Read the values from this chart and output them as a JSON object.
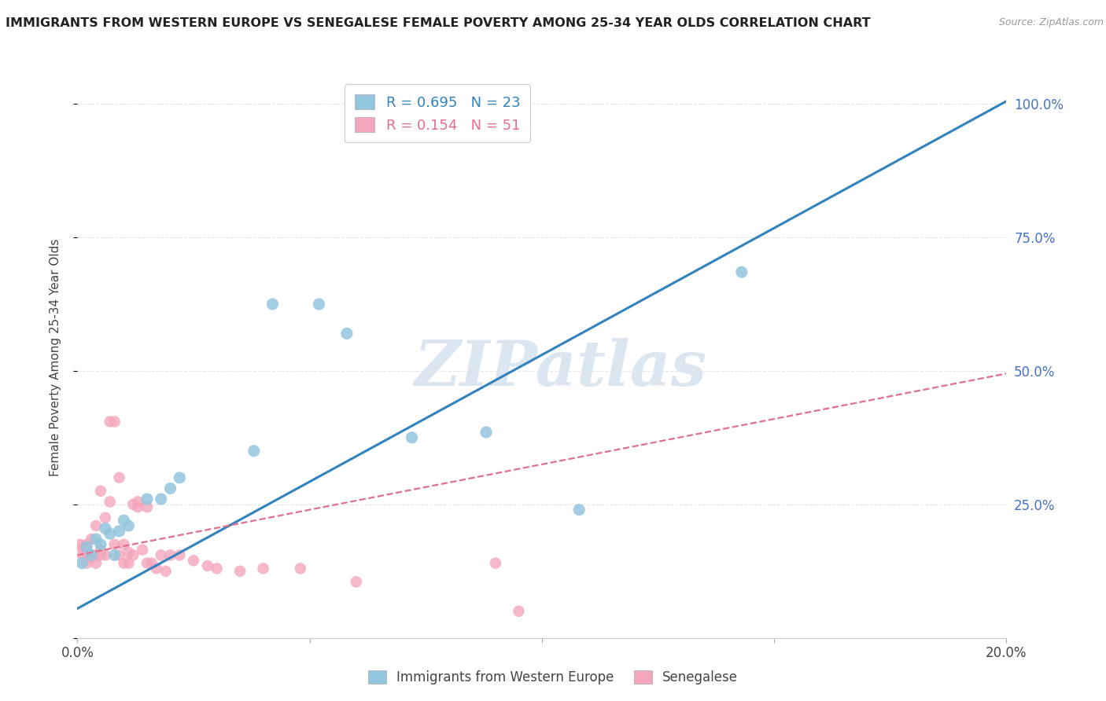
{
  "title": "IMMIGRANTS FROM WESTERN EUROPE VS SENEGALESE FEMALE POVERTY AMONG 25-34 YEAR OLDS CORRELATION CHART",
  "source": "Source: ZipAtlas.com",
  "ylabel": "Female Poverty Among 25-34 Year Olds",
  "xlim": [
    0.0,
    0.2
  ],
  "ylim": [
    0.0,
    1.05
  ],
  "yticks": [
    0.0,
    0.25,
    0.5,
    0.75,
    1.0
  ],
  "ytick_labels": [
    "",
    "25.0%",
    "50.0%",
    "75.0%",
    "100.0%"
  ],
  "xticks": [
    0.0,
    0.05,
    0.1,
    0.15,
    0.2
  ],
  "xtick_labels": [
    "0.0%",
    "",
    "",
    "",
    "20.0%"
  ],
  "blue_R": 0.695,
  "blue_N": 23,
  "pink_R": 0.154,
  "pink_N": 51,
  "blue_color": "#92c5de",
  "pink_color": "#f4a6bc",
  "blue_line_color": "#3182bd",
  "pink_line_color": "#e07090",
  "watermark": "ZIPatlas",
  "watermark_color": "#dce6f0",
  "background_color": "#ffffff",
  "grid_color": "#e0e0e0",
  "blue_scatter_x": [
    0.001,
    0.002,
    0.003,
    0.004,
    0.005,
    0.006,
    0.007,
    0.008,
    0.009,
    0.01,
    0.011,
    0.015,
    0.018,
    0.02,
    0.022,
    0.038,
    0.042,
    0.052,
    0.058,
    0.072,
    0.088,
    0.108,
    0.143
  ],
  "blue_scatter_y": [
    0.14,
    0.17,
    0.155,
    0.185,
    0.175,
    0.205,
    0.195,
    0.155,
    0.2,
    0.22,
    0.21,
    0.26,
    0.26,
    0.28,
    0.3,
    0.35,
    0.625,
    0.625,
    0.57,
    0.375,
    0.385,
    0.24,
    0.685
  ],
  "pink_scatter_x": [
    0.0005,
    0.001,
    0.001,
    0.0015,
    0.002,
    0.002,
    0.002,
    0.003,
    0.003,
    0.003,
    0.003,
    0.004,
    0.004,
    0.004,
    0.005,
    0.005,
    0.005,
    0.006,
    0.006,
    0.007,
    0.007,
    0.008,
    0.008,
    0.009,
    0.009,
    0.01,
    0.01,
    0.011,
    0.011,
    0.012,
    0.012,
    0.013,
    0.013,
    0.014,
    0.015,
    0.015,
    0.016,
    0.017,
    0.018,
    0.019,
    0.02,
    0.022,
    0.025,
    0.028,
    0.03,
    0.035,
    0.04,
    0.048,
    0.06,
    0.09,
    0.095
  ],
  "pink_scatter_y": [
    0.175,
    0.155,
    0.17,
    0.165,
    0.14,
    0.155,
    0.175,
    0.15,
    0.155,
    0.155,
    0.185,
    0.14,
    0.155,
    0.21,
    0.155,
    0.165,
    0.275,
    0.155,
    0.225,
    0.255,
    0.405,
    0.175,
    0.405,
    0.155,
    0.3,
    0.14,
    0.175,
    0.14,
    0.16,
    0.25,
    0.155,
    0.245,
    0.255,
    0.165,
    0.14,
    0.245,
    0.14,
    0.13,
    0.155,
    0.125,
    0.155,
    0.155,
    0.145,
    0.135,
    0.13,
    0.125,
    0.13,
    0.13,
    0.105,
    0.14,
    0.05
  ],
  "legend_blue_label": "Immigrants from Western Europe",
  "legend_pink_label": "Senegalese",
  "blue_line_x": [
    0.0,
    0.2
  ],
  "blue_line_y": [
    0.055,
    1.005
  ],
  "pink_line_x": [
    0.0,
    0.2
  ],
  "pink_line_y": [
    0.155,
    0.495
  ]
}
